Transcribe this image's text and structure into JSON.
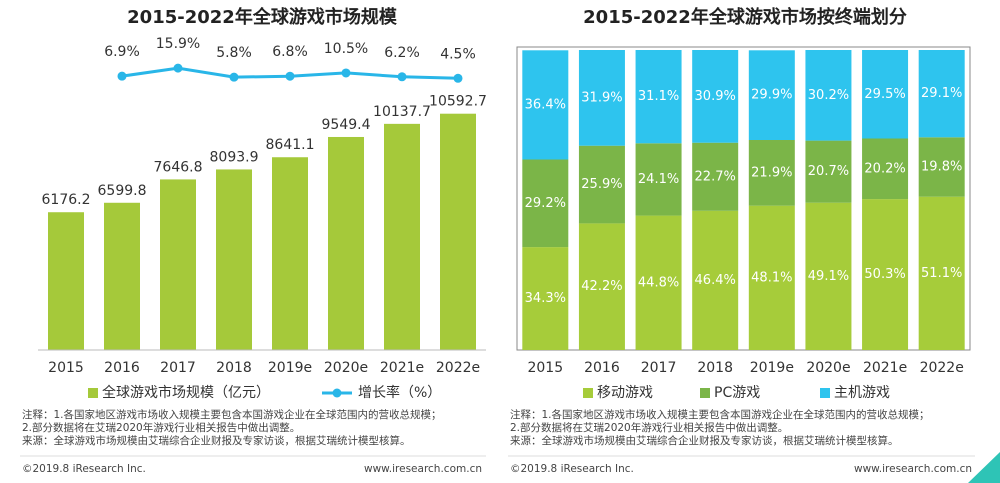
{
  "chart_data": [
    {
      "type": "bar",
      "title": "2015-2022年全球游戏市场规模",
      "categories": [
        "2015",
        "2016",
        "2017",
        "2018",
        "2019e",
        "2020e",
        "2021e",
        "2022e"
      ],
      "series": [
        {
          "name": "全球游戏市场规模（亿元）",
          "color": "#a5c93a",
          "values": [
            6176.2,
            6599.8,
            7646.8,
            8093.9,
            8641.1,
            9549.4,
            10137.7,
            10592.7
          ]
        },
        {
          "name": "增长率（%）",
          "type": "line",
          "axis": "y2",
          "color": "#29b6e8",
          "values": [
            null,
            6.9,
            15.9,
            5.8,
            6.8,
            10.5,
            6.2,
            4.5
          ],
          "value_labels": [
            null,
            "6.9%",
            "15.9%",
            "5.8%",
            "6.8%",
            "10.5%",
            "6.2%",
            "4.5%"
          ]
        }
      ],
      "ylim": [
        0,
        13000
      ],
      "y2lim": [
        -300,
        25
      ]
    },
    {
      "type": "stacked_bar",
      "title": "2015-2022年全球游戏市场按终端划分",
      "categories": [
        "2015",
        "2016",
        "2017",
        "2018",
        "2019e",
        "2020e",
        "2021e",
        "2022e"
      ],
      "series": [
        {
          "name": "移动游戏",
          "color": "#a6cc3a",
          "values": [
            34.3,
            42.2,
            44.8,
            46.4,
            48.1,
            49.1,
            50.3,
            51.1
          ],
          "value_labels": [
            "34.3%",
            "42.2%",
            "44.8%",
            "46.4%",
            "48.1%",
            "49.1%",
            "50.3%",
            "51.1%"
          ]
        },
        {
          "name": "PC游戏",
          "color": "#7bb548",
          "values": [
            29.2,
            25.9,
            24.1,
            22.7,
            21.9,
            20.7,
            20.2,
            19.8
          ],
          "value_labels": [
            "29.2%",
            "25.9%",
            "24.1%",
            "22.7%",
            "21.9%",
            "20.7%",
            "20.2%",
            "19.8%"
          ]
        },
        {
          "name": "主机游戏",
          "color": "#2ec4ee",
          "values": [
            36.4,
            31.9,
            31.1,
            30.9,
            29.9,
            30.2,
            29.5,
            29.1
          ],
          "value_labels": [
            "36.4%",
            "31.9%",
            "31.1%",
            "30.9%",
            "29.9%",
            "30.2%",
            "29.5%",
            "29.1%"
          ]
        }
      ],
      "ylim": [
        0,
        100
      ]
    }
  ],
  "footer": {
    "notes": [
      "注释：1.各国家地区游戏市场收入规模主要包含本国游戏企业在全球范围内的营收总规模；",
      "2.部分数据将在艾瑞2020年游戏行业相关报告中做出调整。",
      "来源：全球游戏市场规模由艾瑞综合企业财报及专家访谈，根据艾瑞统计模型核算。"
    ],
    "copyright": "©2019.8 iResearch Inc.",
    "site": "www.iresearch.com.cn"
  }
}
